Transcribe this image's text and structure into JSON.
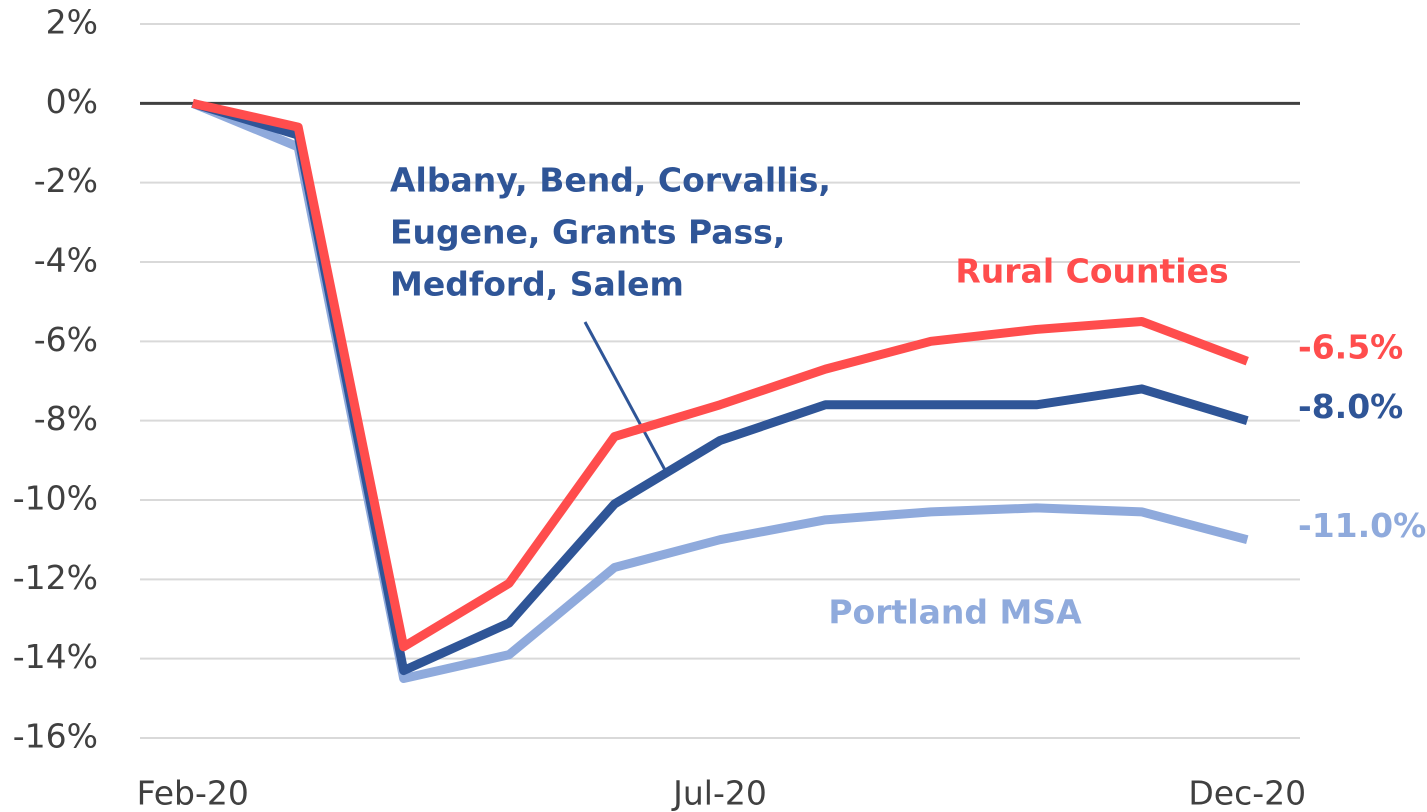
{
  "chart_data": {
    "type": "line",
    "categories": [
      "Feb-20",
      null,
      null,
      null,
      null,
      "Jul-20",
      null,
      null,
      null,
      null,
      "Dec-20"
    ],
    "series": [
      {
        "name": "Portland MSA",
        "color": "#8faadc",
        "values": [
          0,
          -1.1,
          -14.5,
          -13.9,
          -11.7,
          -11.0,
          -10.5,
          -10.3,
          -10.2,
          -10.3,
          -11.0
        ],
        "value_labels": [
          null,
          null,
          null,
          null,
          null,
          null,
          null,
          null,
          null,
          null,
          "-11.0%"
        ]
      },
      {
        "name": [
          "Albany, Bend, Corvallis,",
          "Eugene, Grants Pass,",
          "Medford, Salem"
        ],
        "color": "#2f5597",
        "values": [
          0,
          -0.8,
          -14.3,
          -13.1,
          -10.1,
          -8.5,
          -7.6,
          -7.6,
          -7.6,
          -7.2,
          -8.0
        ],
        "value_labels": [
          null,
          null,
          null,
          null,
          null,
          null,
          null,
          null,
          null,
          null,
          "-8.0%"
        ]
      },
      {
        "name": "Rural Counties",
        "color": "#ff4d4d",
        "values": [
          0,
          -0.6,
          -13.7,
          -12.1,
          -8.4,
          -7.6,
          -6.7,
          -6.0,
          -5.7,
          -5.5,
          -6.5
        ],
        "value_labels": [
          null,
          null,
          null,
          null,
          null,
          null,
          null,
          null,
          null,
          null,
          "-6.5%"
        ]
      }
    ],
    "ylim": [
      -16,
      2
    ],
    "yticks": [
      {
        "value": 2,
        "label": "2%"
      },
      {
        "value": 0,
        "label": "0%"
      },
      {
        "value": -2,
        "label": "-2%"
      },
      {
        "value": -4,
        "label": "-4%"
      },
      {
        "value": -6,
        "label": "-6%"
      },
      {
        "value": -8,
        "label": "-8%"
      },
      {
        "value": -10,
        "label": "-10%"
      },
      {
        "value": -12,
        "label": "-12%"
      },
      {
        "value": -14,
        "label": "-14%"
      },
      {
        "value": -16,
        "label": "-16%"
      }
    ],
    "grid": true
  }
}
